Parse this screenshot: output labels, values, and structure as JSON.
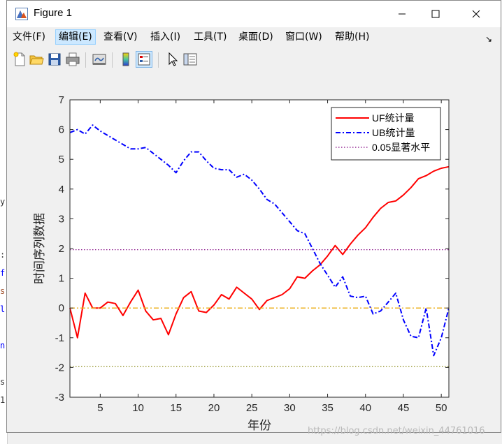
{
  "window": {
    "title": "Figure 1",
    "controls": {
      "minimize": "—",
      "maximize": "☐",
      "close": "✕"
    }
  },
  "menu": {
    "items": [
      "文件(F)",
      "编辑(E)",
      "查看(V)",
      "插入(I)",
      "工具(T)",
      "桌面(D)",
      "窗口(W)",
      "帮助(H)"
    ],
    "active_index": 1,
    "overflow_arrow": "↘"
  },
  "toolbar": {
    "icons": [
      "new-figure-icon",
      "open-file-icon",
      "save-icon",
      "print-icon",
      "link-plot-icon",
      "colorbar-icon",
      "legend-icon",
      "pointer-icon",
      "property-inspector-icon"
    ]
  },
  "background_code": [
    "y",
    ":",
    "f",
    "s",
    "l",
    "n",
    "s",
    "1"
  ],
  "watermark": "https://blog.csdn.net/weixin_44761016",
  "chart_data": {
    "type": "line",
    "title": "",
    "xlabel": "年份",
    "ylabel": "时间序列数据",
    "xlim": [
      1,
      51
    ],
    "ylim": [
      -3,
      7
    ],
    "xticks": [
      5,
      10,
      15,
      20,
      25,
      30,
      35,
      40,
      45,
      50
    ],
    "yticks": [
      -3,
      -2,
      -1,
      0,
      1,
      2,
      3,
      4,
      5,
      6,
      7
    ],
    "grid": false,
    "legend_position": "top-right",
    "series": [
      {
        "name": "UF统计量",
        "color": "#ff0000",
        "style": "solid",
        "x": [
          1,
          2,
          3,
          4,
          5,
          6,
          7,
          8,
          9,
          10,
          11,
          12,
          13,
          14,
          15,
          16,
          17,
          18,
          19,
          20,
          21,
          22,
          23,
          24,
          25,
          26,
          27,
          28,
          29,
          30,
          31,
          32,
          33,
          34,
          35,
          36,
          37,
          38,
          39,
          40,
          41,
          42,
          43,
          44,
          45,
          46,
          47,
          48,
          49,
          50,
          51
        ],
        "y": [
          0.0,
          -1.0,
          0.5,
          0.0,
          0.0,
          0.2,
          0.15,
          -0.25,
          0.2,
          0.6,
          -0.1,
          -0.4,
          -0.35,
          -0.9,
          -0.2,
          0.35,
          0.55,
          -0.1,
          -0.15,
          0.1,
          0.45,
          0.3,
          0.7,
          0.5,
          0.3,
          -0.05,
          0.25,
          0.35,
          0.45,
          0.65,
          1.05,
          1.0,
          1.25,
          1.45,
          1.75,
          2.1,
          1.8,
          2.15,
          2.45,
          2.7,
          3.05,
          3.35,
          3.55,
          3.6,
          3.8,
          4.05,
          4.35,
          4.45,
          4.6,
          4.7,
          4.75
        ]
      },
      {
        "name": "UB统计量",
        "color": "#0000ff",
        "style": "dashdot",
        "x": [
          1,
          2,
          3,
          4,
          5,
          6,
          7,
          8,
          9,
          10,
          11,
          12,
          13,
          14,
          15,
          16,
          17,
          18,
          19,
          20,
          21,
          22,
          23,
          24,
          25,
          26,
          27,
          28,
          29,
          30,
          31,
          32,
          33,
          34,
          35,
          36,
          37,
          38,
          39,
          40,
          41,
          42,
          43,
          44,
          45,
          46,
          47,
          48,
          49,
          50,
          51
        ],
        "y": [
          5.9,
          6.0,
          5.85,
          6.15,
          5.95,
          5.8,
          5.65,
          5.5,
          5.35,
          5.35,
          5.4,
          5.2,
          5.0,
          4.8,
          4.55,
          4.95,
          5.25,
          5.25,
          4.95,
          4.7,
          4.65,
          4.65,
          4.4,
          4.5,
          4.3,
          4.0,
          3.65,
          3.5,
          3.2,
          2.9,
          2.6,
          2.5,
          2.0,
          1.5,
          1.1,
          0.7,
          1.05,
          0.4,
          0.35,
          0.4,
          -0.2,
          -0.1,
          0.2,
          0.5,
          -0.4,
          -0.95,
          -1.0,
          0.0,
          -1.6,
          -1.0,
          0.0
        ]
      },
      {
        "name": "0.05显著水平",
        "color": "#800080",
        "style": "dotted",
        "x": [
          1,
          51
        ],
        "y": [
          1.96,
          1.96
        ]
      },
      {
        "color": "#808000",
        "style": "dotted",
        "x": [
          1,
          51
        ],
        "y": [
          -1.96,
          -1.96
        ]
      },
      {
        "color": "#edb120",
        "style": "dashdot",
        "x": [
          1,
          51
        ],
        "y": [
          0,
          0
        ]
      }
    ]
  }
}
